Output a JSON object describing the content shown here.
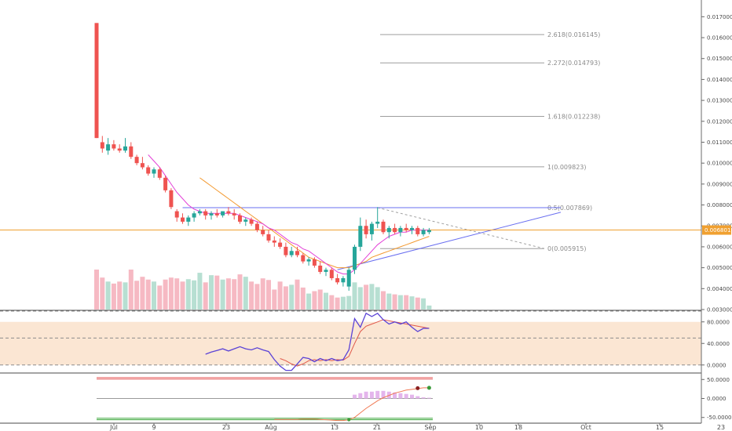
{
  "chart_data": {
    "type": "candlestick",
    "x_ticks": [
      "Jul",
      "9",
      "23",
      "Aug",
      "13",
      "21",
      "Sep",
      "10",
      "18",
      "Oct",
      "15",
      "23"
    ],
    "price_axis": {
      "ticks": [
        "0.017000",
        "0.016000",
        "0.015000",
        "0.014000",
        "0.013000",
        "0.012000",
        "0.011000",
        "0.010000",
        "0.009000",
        "0.008000",
        "0.007000",
        "0.006000",
        "0.005000",
        "0.004000",
        "0.003000"
      ],
      "ylim": [
        0.003,
        0.0175
      ]
    },
    "current_price": "0.006801",
    "fib_levels": [
      {
        "label": "2.618(0.016145)",
        "value": 0.016145
      },
      {
        "label": "2.272(0.014793)",
        "value": 0.014793
      },
      {
        "label": "1.618(0.012238)",
        "value": 0.012238
      },
      {
        "label": "1(0.009823)",
        "value": 0.009823
      },
      {
        "label": "0.5(0.007869)",
        "value": 0.007869
      },
      {
        "label": "0(0.005915)",
        "value": 0.005915
      }
    ],
    "candles": [
      {
        "o": 0.0167,
        "h": 0.0167,
        "l": 0.0112,
        "c": 0.0112
      },
      {
        "o": 0.011,
        "h": 0.0113,
        "l": 0.0105,
        "c": 0.0107
      },
      {
        "o": 0.0106,
        "h": 0.0112,
        "l": 0.0104,
        "c": 0.0109
      },
      {
        "o": 0.0109,
        "h": 0.0111,
        "l": 0.0106,
        "c": 0.0107
      },
      {
        "o": 0.0107,
        "h": 0.0109,
        "l": 0.0105,
        "c": 0.0106
      },
      {
        "o": 0.0106,
        "h": 0.0112,
        "l": 0.0105,
        "c": 0.0108
      },
      {
        "o": 0.0108,
        "h": 0.011,
        "l": 0.0102,
        "c": 0.0103
      },
      {
        "o": 0.0103,
        "h": 0.0104,
        "l": 0.0099,
        "c": 0.01
      },
      {
        "o": 0.01,
        "h": 0.0103,
        "l": 0.0097,
        "c": 0.0098
      },
      {
        "o": 0.0098,
        "h": 0.0099,
        "l": 0.0094,
        "c": 0.0095
      },
      {
        "o": 0.0095,
        "h": 0.0098,
        "l": 0.0093,
        "c": 0.0097
      },
      {
        "o": 0.0097,
        "h": 0.0098,
        "l": 0.0092,
        "c": 0.0093
      },
      {
        "o": 0.0093,
        "h": 0.0094,
        "l": 0.0086,
        "c": 0.0087
      },
      {
        "o": 0.0087,
        "h": 0.0088,
        "l": 0.0078,
        "c": 0.0079
      },
      {
        "o": 0.0077,
        "h": 0.0078,
        "l": 0.0072,
        "c": 0.0074
      },
      {
        "o": 0.0074,
        "h": 0.0076,
        "l": 0.0071,
        "c": 0.0072
      },
      {
        "o": 0.0072,
        "h": 0.0075,
        "l": 0.007,
        "c": 0.0074
      },
      {
        "o": 0.0074,
        "h": 0.0077,
        "l": 0.0072,
        "c": 0.0076
      },
      {
        "o": 0.0076,
        "h": 0.0078,
        "l": 0.0075,
        "c": 0.0077
      },
      {
        "o": 0.0077,
        "h": 0.0078,
        "l": 0.0073,
        "c": 0.0075
      },
      {
        "o": 0.0075,
        "h": 0.0077,
        "l": 0.0073,
        "c": 0.0076
      },
      {
        "o": 0.0076,
        "h": 0.0078,
        "l": 0.0074,
        "c": 0.0075
      },
      {
        "o": 0.0075,
        "h": 0.0077,
        "l": 0.0074,
        "c": 0.0077
      },
      {
        "o": 0.0077,
        "h": 0.0079,
        "l": 0.0075,
        "c": 0.0076
      },
      {
        "o": 0.0076,
        "h": 0.0078,
        "l": 0.0073,
        "c": 0.0075
      },
      {
        "o": 0.0075,
        "h": 0.0076,
        "l": 0.0071,
        "c": 0.0072
      },
      {
        "o": 0.0072,
        "h": 0.0074,
        "l": 0.007,
        "c": 0.0073
      },
      {
        "o": 0.0073,
        "h": 0.0074,
        "l": 0.007,
        "c": 0.0071
      },
      {
        "o": 0.0071,
        "h": 0.0072,
        "l": 0.0067,
        "c": 0.0068
      },
      {
        "o": 0.0068,
        "h": 0.007,
        "l": 0.0065,
        "c": 0.0066
      },
      {
        "o": 0.0066,
        "h": 0.0068,
        "l": 0.0062,
        "c": 0.0063
      },
      {
        "o": 0.0063,
        "h": 0.0065,
        "l": 0.006,
        "c": 0.0062
      },
      {
        "o": 0.0062,
        "h": 0.0064,
        "l": 0.0059,
        "c": 0.006
      },
      {
        "o": 0.006,
        "h": 0.0062,
        "l": 0.0055,
        "c": 0.0056
      },
      {
        "o": 0.0056,
        "h": 0.006,
        "l": 0.0055,
        "c": 0.0058
      },
      {
        "o": 0.0058,
        "h": 0.006,
        "l": 0.0055,
        "c": 0.0056
      },
      {
        "o": 0.0056,
        "h": 0.0057,
        "l": 0.0052,
        "c": 0.0053
      },
      {
        "o": 0.0053,
        "h": 0.0055,
        "l": 0.0051,
        "c": 0.0054
      },
      {
        "o": 0.0054,
        "h": 0.0055,
        "l": 0.005,
        "c": 0.0051
      },
      {
        "o": 0.0051,
        "h": 0.0053,
        "l": 0.0047,
        "c": 0.0048
      },
      {
        "o": 0.0048,
        "h": 0.005,
        "l": 0.0046,
        "c": 0.0049
      },
      {
        "o": 0.0049,
        "h": 0.005,
        "l": 0.0044,
        "c": 0.0045
      },
      {
        "o": 0.0045,
        "h": 0.0047,
        "l": 0.0042,
        "c": 0.0043
      },
      {
        "o": 0.0043,
        "h": 0.0046,
        "l": 0.0041,
        "c": 0.0045
      },
      {
        "o": 0.0041,
        "h": 0.005,
        "l": 0.0039,
        "c": 0.0049
      },
      {
        "o": 0.0049,
        "h": 0.0061,
        "l": 0.0047,
        "c": 0.006
      },
      {
        "o": 0.006,
        "h": 0.0074,
        "l": 0.0058,
        "c": 0.007
      },
      {
        "o": 0.007,
        "h": 0.0073,
        "l": 0.0064,
        "c": 0.0066
      },
      {
        "o": 0.0066,
        "h": 0.0072,
        "l": 0.0063,
        "c": 0.0071
      },
      {
        "o": 0.0071,
        "h": 0.0079,
        "l": 0.0069,
        "c": 0.0072
      },
      {
        "o": 0.0072,
        "h": 0.0073,
        "l": 0.0066,
        "c": 0.0067
      },
      {
        "o": 0.0067,
        "h": 0.007,
        "l": 0.0064,
        "c": 0.0069
      },
      {
        "o": 0.0069,
        "h": 0.0071,
        "l": 0.0066,
        "c": 0.0067
      },
      {
        "o": 0.0067,
        "h": 0.007,
        "l": 0.0065,
        "c": 0.0069
      },
      {
        "o": 0.0069,
        "h": 0.0071,
        "l": 0.0067,
        "c": 0.0068
      },
      {
        "o": 0.0068,
        "h": 0.007,
        "l": 0.0066,
        "c": 0.0069
      },
      {
        "o": 0.0069,
        "h": 0.007,
        "l": 0.0065,
        "c": 0.0066
      },
      {
        "o": 0.0066,
        "h": 0.0069,
        "l": 0.0065,
        "c": 0.0068
      },
      {
        "o": 0.0067,
        "h": 0.0069,
        "l": 0.0066,
        "c": 0.0068
      }
    ],
    "volume": [
      100,
      80,
      70,
      65,
      70,
      68,
      100,
      72,
      82,
      75,
      70,
      60,
      75,
      80,
      78,
      70,
      76,
      73,
      92,
      68,
      86,
      85,
      75,
      78,
      76,
      88,
      82,
      70,
      64,
      78,
      74,
      50,
      70,
      58,
      62,
      75,
      55,
      40,
      46,
      50,
      42,
      36,
      30,
      32,
      34,
      68,
      56,
      62,
      64,
      56,
      46,
      40,
      38,
      36,
      36,
      33,
      30,
      28,
      10
    ],
    "ma_fast": [
      null,
      null,
      null,
      null,
      null,
      null,
      null,
      null,
      null,
      0.0104,
      0.0101,
      0.0098,
      0.0094,
      0.009,
      0.0086,
      0.0083,
      0.008,
      0.0078,
      0.0077,
      0.0076,
      0.0076,
      0.0076,
      0.0076,
      0.0076,
      0.0076,
      0.0075,
      0.0074,
      0.0073,
      0.0072,
      0.0071,
      0.0069,
      0.0068,
      0.0066,
      0.0064,
      0.0062,
      0.0061,
      0.0059,
      0.0058,
      0.0056,
      0.0054,
      0.0052,
      0.005,
      0.0048,
      0.0047,
      0.0047,
      0.0049,
      0.0052,
      0.0055,
      0.0058,
      0.0061,
      0.0063,
      0.0065,
      0.0066,
      0.0067,
      0.0067,
      0.0068,
      0.0068,
      0.0068,
      0.0068
    ],
    "ma_slow": [
      null,
      null,
      null,
      null,
      null,
      null,
      null,
      null,
      null,
      null,
      null,
      null,
      null,
      null,
      null,
      null,
      null,
      null,
      0.0093,
      0.0091,
      0.0089,
      0.0087,
      0.0085,
      0.0083,
      0.0081,
      0.0079,
      0.0077,
      0.0075,
      0.0073,
      0.0071,
      0.0069,
      0.0067,
      0.0065,
      0.0063,
      0.0061,
      0.0059,
      0.0057,
      0.0055,
      0.0054,
      0.0053,
      0.0052,
      0.0051,
      0.005,
      0.005,
      0.005,
      0.0051,
      0.0052,
      0.0053,
      0.0055,
      0.0056,
      0.0057,
      0.0058,
      0.0059,
      0.006,
      0.0061,
      0.0062,
      0.0063,
      0.0064,
      0.0065
    ],
    "stoch": {
      "ticks": [
        "80.0000",
        "40.0000",
        "0.0000"
      ],
      "ylim": [
        -12,
        100
      ],
      "k": [
        null,
        null,
        null,
        null,
        null,
        null,
        null,
        null,
        null,
        null,
        null,
        null,
        null,
        null,
        null,
        null,
        null,
        null,
        null,
        20,
        24,
        27,
        30,
        26,
        30,
        34,
        30,
        28,
        32,
        28,
        25,
        10,
        -2,
        -10,
        -10,
        2,
        14,
        12,
        6,
        12,
        8,
        12,
        8,
        10,
        28,
        86,
        70,
        96,
        90,
        96,
        84,
        76,
        80,
        76,
        80,
        70,
        62,
        68,
        68
      ],
      "d": [
        null,
        null,
        null,
        null,
        null,
        null,
        null,
        null,
        null,
        null,
        null,
        null,
        null,
        null,
        null,
        null,
        null,
        null,
        null,
        null,
        null,
        null,
        null,
        null,
        null,
        null,
        null,
        null,
        null,
        null,
        null,
        null,
        12,
        8,
        2,
        -2,
        2,
        8,
        10,
        8,
        10,
        8,
        10,
        9,
        16,
        40,
        62,
        72,
        76,
        80,
        84,
        82,
        80,
        78,
        76,
        74,
        72,
        70,
        68
      ]
    },
    "momentum": {
      "ticks": [
        "50.0000",
        "0.0000",
        "-50.0000"
      ],
      "ylim": [
        -65,
        65
      ],
      "line": [
        null,
        null,
        null,
        null,
        null,
        null,
        null,
        null,
        null,
        null,
        null,
        null,
        null,
        null,
        null,
        null,
        null,
        null,
        null,
        null,
        null,
        null,
        null,
        null,
        null,
        null,
        null,
        null,
        null,
        null,
        null,
        -55,
        -55,
        -55,
        -55,
        -55,
        -54,
        -54,
        -54,
        -55,
        -56,
        -57,
        -58,
        -58,
        -56,
        -50,
        -38,
        -26,
        -16,
        -6,
        2,
        8,
        14,
        18,
        22,
        24,
        26,
        28,
        28
      ],
      "histogram": [
        0,
        0,
        0,
        0,
        0,
        0,
        0,
        0,
        0,
        0,
        0,
        0,
        0,
        0,
        0,
        0,
        0,
        0,
        0,
        0,
        0,
        0,
        0,
        0,
        0,
        0,
        0,
        0,
        0,
        0,
        0,
        0,
        0,
        0,
        0,
        0,
        0,
        0,
        0,
        0,
        0,
        0,
        0,
        0,
        0,
        10,
        14,
        18,
        18,
        20,
        20,
        18,
        16,
        14,
        12,
        10,
        6,
        3,
        2
      ]
    }
  },
  "colors": {
    "bull": "#26a69a",
    "bear": "#ef5350",
    "vol_bull": "#b7dfd2",
    "vol_bear": "#f6b9c3",
    "ma_fast": "#e33fd7",
    "ma_slow": "#f39a31",
    "trend": "#6a6ff0",
    "fib": "#9e9e9e",
    "price_line": "#f0a030",
    "stoch_k": "#5b43d6",
    "stoch_d": "#e0584a",
    "stoch_band": "#fbe6d3",
    "mom_line": "#f07a55",
    "mom_hist": "#e4b5ec",
    "mom_upper": "#e65a5a",
    "mom_lower": "#3aa63a"
  }
}
